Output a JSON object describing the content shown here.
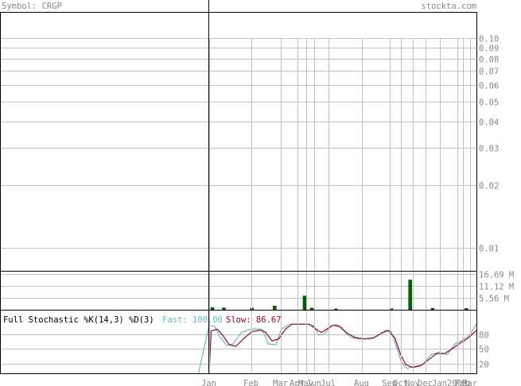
{
  "header": {
    "symbol": "Symbol: CRGP",
    "site": "stockta.com"
  },
  "colors": {
    "grid": "#c0c0c0",
    "axis": "#000000",
    "label": "#888888",
    "volume": "#006400",
    "fast": "#66bbbb",
    "slow": "#990033",
    "title_text": "#000000"
  },
  "chart_data": {
    "type": "line",
    "price_axis": {
      "scale": "log",
      "ticks": [
        "0.10",
        "0.09",
        "0.08",
        "0.07",
        "0.06",
        "0.05",
        "0.04",
        "0.03",
        "0.02",
        "0.01"
      ],
      "tick_values": [
        0.1,
        0.09,
        0.08,
        0.07,
        0.06,
        0.05,
        0.04,
        0.03,
        0.02,
        0.01
      ]
    },
    "x_axis": {
      "months": [
        {
          "label": "Jan",
          "pos": 0.0
        },
        {
          "label": "Feb",
          "pos": 0.158
        },
        {
          "label": "Mar",
          "pos": 0.267
        },
        {
          "label": "Apr",
          "pos": 0.33
        },
        {
          "label": "May",
          "pos": 0.362
        },
        {
          "label": "Jun",
          "pos": 0.394
        },
        {
          "label": "Jul",
          "pos": 0.447
        },
        {
          "label": "Aug",
          "pos": 0.571
        },
        {
          "label": "Sep",
          "pos": 0.676
        },
        {
          "label": "Oct",
          "pos": 0.718
        },
        {
          "label": "Nov",
          "pos": 0.761
        },
        {
          "label": "Dec",
          "pos": 0.811
        },
        {
          "label": "Jan",
          "pos": 0.864
        },
        {
          "label": "2008",
          "pos": 0.928
        },
        {
          "label": "Feb",
          "pos": 0.95
        },
        {
          "label": "Mar",
          "pos": 0.976
        }
      ]
    },
    "volume": {
      "ticks": [
        "16.69 M",
        "11.12 M",
        "5.56 M"
      ],
      "tick_values": [
        16.69,
        11.12,
        5.56
      ],
      "unit": "M",
      "bars": [
        {
          "pos": 0.012,
          "v": 1.0
        },
        {
          "pos": 0.055,
          "v": 0.9
        },
        {
          "pos": 0.16,
          "v": 0.8
        },
        {
          "pos": 0.245,
          "v": 1.8
        },
        {
          "pos": 0.357,
          "v": 6.5
        },
        {
          "pos": 0.384,
          "v": 0.8
        },
        {
          "pos": 0.474,
          "v": 0.4
        },
        {
          "pos": 0.682,
          "v": 0.5
        },
        {
          "pos": 0.752,
          "v": 14.0
        },
        {
          "pos": 0.836,
          "v": 0.7
        },
        {
          "pos": 0.962,
          "v": 0.6
        }
      ]
    },
    "stochastic": {
      "title": "Full Stochastic %K(14,3) %D(3)",
      "fast_label": "Fast: 100.00",
      "slow_label": "Slow: 86.67",
      "ticks": [
        "80",
        "50",
        "20"
      ],
      "tick_values": [
        80,
        50,
        20
      ],
      "range": [
        0,
        110
      ],
      "fast": [
        {
          "p": -0.04,
          "v": 0
        },
        {
          "p": -0.02,
          "v": 50
        },
        {
          "p": 0.0,
          "v": 97
        },
        {
          "p": 0.02,
          "v": 96
        },
        {
          "p": 0.04,
          "v": 75
        },
        {
          "p": 0.065,
          "v": 57
        },
        {
          "p": 0.09,
          "v": 60
        },
        {
          "p": 0.12,
          "v": 83
        },
        {
          "p": 0.15,
          "v": 89
        },
        {
          "p": 0.175,
          "v": 91
        },
        {
          "p": 0.2,
          "v": 89
        },
        {
          "p": 0.22,
          "v": 60
        },
        {
          "p": 0.25,
          "v": 58
        },
        {
          "p": 0.27,
          "v": 90
        },
        {
          "p": 0.3,
          "v": 100
        },
        {
          "p": 0.33,
          "v": 100
        },
        {
          "p": 0.36,
          "v": 100
        },
        {
          "p": 0.39,
          "v": 97
        },
        {
          "p": 0.41,
          "v": 78
        },
        {
          "p": 0.43,
          "v": 79
        },
        {
          "p": 0.455,
          "v": 97
        },
        {
          "p": 0.48,
          "v": 99
        },
        {
          "p": 0.5,
          "v": 88
        },
        {
          "p": 0.53,
          "v": 73
        },
        {
          "p": 0.56,
          "v": 70
        },
        {
          "p": 0.6,
          "v": 70
        },
        {
          "p": 0.63,
          "v": 76
        },
        {
          "p": 0.66,
          "v": 88
        },
        {
          "p": 0.68,
          "v": 86
        },
        {
          "p": 0.7,
          "v": 55
        },
        {
          "p": 0.72,
          "v": 22
        },
        {
          "p": 0.74,
          "v": 10
        },
        {
          "p": 0.77,
          "v": 14
        },
        {
          "p": 0.8,
          "v": 18
        },
        {
          "p": 0.83,
          "v": 38
        },
        {
          "p": 0.86,
          "v": 43
        },
        {
          "p": 0.89,
          "v": 38
        },
        {
          "p": 0.92,
          "v": 60
        },
        {
          "p": 0.95,
          "v": 68
        },
        {
          "p": 0.975,
          "v": 78
        },
        {
          "p": 1.0,
          "v": 100
        }
      ],
      "slow": [
        {
          "p": 0.0,
          "v": 0
        },
        {
          "p": 0.007,
          "v": 86
        },
        {
          "p": 0.03,
          "v": 90
        },
        {
          "p": 0.05,
          "v": 78
        },
        {
          "p": 0.075,
          "v": 58
        },
        {
          "p": 0.1,
          "v": 55
        },
        {
          "p": 0.13,
          "v": 71
        },
        {
          "p": 0.16,
          "v": 85
        },
        {
          "p": 0.19,
          "v": 88
        },
        {
          "p": 0.21,
          "v": 84
        },
        {
          "p": 0.235,
          "v": 66
        },
        {
          "p": 0.26,
          "v": 70
        },
        {
          "p": 0.285,
          "v": 90
        },
        {
          "p": 0.31,
          "v": 100
        },
        {
          "p": 0.345,
          "v": 100
        },
        {
          "p": 0.375,
          "v": 100
        },
        {
          "p": 0.4,
          "v": 90
        },
        {
          "p": 0.42,
          "v": 83
        },
        {
          "p": 0.44,
          "v": 90
        },
        {
          "p": 0.465,
          "v": 98
        },
        {
          "p": 0.49,
          "v": 95
        },
        {
          "p": 0.515,
          "v": 82
        },
        {
          "p": 0.545,
          "v": 73
        },
        {
          "p": 0.58,
          "v": 70
        },
        {
          "p": 0.615,
          "v": 72
        },
        {
          "p": 0.645,
          "v": 82
        },
        {
          "p": 0.67,
          "v": 87
        },
        {
          "p": 0.695,
          "v": 72
        },
        {
          "p": 0.715,
          "v": 40
        },
        {
          "p": 0.735,
          "v": 18
        },
        {
          "p": 0.76,
          "v": 12
        },
        {
          "p": 0.79,
          "v": 15
        },
        {
          "p": 0.82,
          "v": 27
        },
        {
          "p": 0.85,
          "v": 40
        },
        {
          "p": 0.88,
          "v": 40
        },
        {
          "p": 0.91,
          "v": 50
        },
        {
          "p": 0.94,
          "v": 62
        },
        {
          "p": 0.965,
          "v": 70
        },
        {
          "p": 0.985,
          "v": 80
        },
        {
          "p": 1.0,
          "v": 87
        }
      ]
    }
  }
}
